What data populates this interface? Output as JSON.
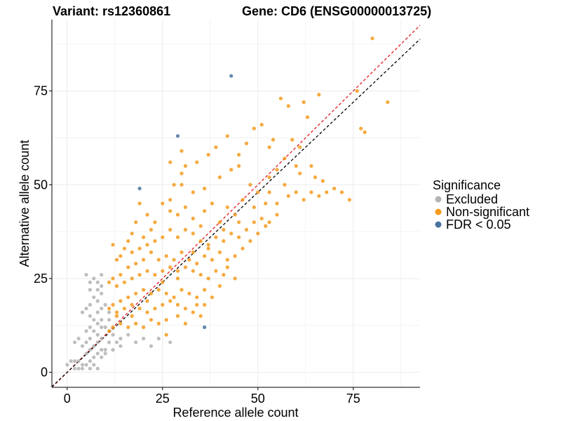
{
  "titles": {
    "left": "Variant: rs12360861",
    "right": "Gene: CD6 (ENSG00000013725)"
  },
  "chart_data": {
    "type": "scatter",
    "xlabel": "Reference allele count",
    "ylabel": "Alternative allele count",
    "xlim": [
      -4,
      92.5
    ],
    "ylim": [
      -4,
      94
    ],
    "xticks": [
      0,
      25,
      50,
      75
    ],
    "yticks": [
      0,
      25,
      50,
      75
    ],
    "grid": true,
    "reference_lines": [
      {
        "name": "identity",
        "color": "#e41a1c",
        "style": "dashed",
        "slope": 1.0,
        "intercept": 0
      },
      {
        "name": "expected",
        "color": "#000000",
        "style": "dashed",
        "slope": 0.96,
        "intercept": 0
      }
    ],
    "legend": {
      "title": "Significance",
      "placement": "right",
      "entries": [
        {
          "label": "Excluded",
          "color": "#b3b3b3"
        },
        {
          "label": "Non-significant",
          "color": "#f59a1c"
        },
        {
          "label": "FDR < 0.05",
          "color": "#4a73a0"
        }
      ]
    },
    "series": [
      {
        "name": "Excluded",
        "color": "#b3b3b3",
        "points": [
          [
            5,
            26
          ],
          [
            6,
            24
          ],
          [
            7,
            25
          ],
          [
            8,
            22
          ],
          [
            9,
            26
          ],
          [
            9,
            23
          ],
          [
            7,
            20
          ],
          [
            8,
            19
          ],
          [
            6,
            18
          ],
          [
            5,
            17
          ],
          [
            4,
            16
          ],
          [
            6,
            15
          ],
          [
            7,
            14
          ],
          [
            8,
            16
          ],
          [
            9,
            17
          ],
          [
            9,
            14
          ],
          [
            8,
            13
          ],
          [
            6,
            12
          ],
          [
            5,
            11
          ],
          [
            7,
            11
          ],
          [
            8,
            10
          ],
          [
            9,
            12
          ],
          [
            10,
            12
          ],
          [
            9,
            9
          ],
          [
            8,
            8
          ],
          [
            6,
            9
          ],
          [
            5,
            8
          ],
          [
            7,
            7
          ],
          [
            4,
            7
          ],
          [
            3,
            9
          ],
          [
            2,
            8
          ],
          [
            5,
            5
          ],
          [
            6,
            6
          ],
          [
            8,
            5
          ],
          [
            9,
            6
          ],
          [
            10,
            6
          ],
          [
            9,
            4
          ],
          [
            7,
            4
          ],
          [
            6,
            3
          ],
          [
            4,
            2
          ],
          [
            3,
            3
          ],
          [
            1,
            3
          ],
          [
            0,
            2
          ],
          [
            2,
            1
          ],
          [
            4,
            1
          ],
          [
            5,
            2
          ],
          [
            7,
            2
          ],
          [
            8,
            1
          ],
          [
            6,
            1
          ],
          [
            2,
            3
          ],
          [
            3,
            1
          ],
          [
            10,
            5
          ],
          [
            11,
            8
          ],
          [
            12,
            10
          ],
          [
            13,
            8
          ],
          [
            14,
            9
          ],
          [
            16,
            10
          ],
          [
            18,
            8
          ],
          [
            20,
            9
          ],
          [
            22,
            7
          ],
          [
            24,
            9
          ],
          [
            27,
            8
          ],
          [
            12,
            6
          ],
          [
            14,
            7
          ],
          [
            6,
            22
          ],
          [
            10,
            18
          ],
          [
            11,
            14
          ],
          [
            11,
            16
          ],
          [
            9,
            21
          ],
          [
            8,
            24
          ]
        ]
      },
      {
        "name": "Non-significant",
        "color": "#f59a1c",
        "points": [
          [
            80,
            89
          ],
          [
            77,
            65
          ],
          [
            84,
            72
          ],
          [
            78,
            64
          ],
          [
            76,
            75
          ],
          [
            62,
            72
          ],
          [
            66,
            74
          ],
          [
            63,
            68
          ],
          [
            58,
            71
          ],
          [
            56,
            73
          ],
          [
            59,
            62
          ],
          [
            54,
            62
          ],
          [
            51,
            66
          ],
          [
            53,
            60
          ],
          [
            49,
            65
          ],
          [
            47,
            61
          ],
          [
            42,
            63
          ],
          [
            45,
            58
          ],
          [
            39,
            60
          ],
          [
            37,
            58
          ],
          [
            34,
            56
          ],
          [
            30,
            59
          ],
          [
            30,
            53
          ],
          [
            30,
            50
          ],
          [
            31,
            55
          ],
          [
            27,
            56
          ],
          [
            28,
            50
          ],
          [
            27,
            46
          ],
          [
            33,
            48
          ],
          [
            36,
            49
          ],
          [
            40,
            52
          ],
          [
            43,
            54
          ],
          [
            45,
            55
          ],
          [
            48,
            50
          ],
          [
            50,
            48
          ],
          [
            53,
            52
          ],
          [
            55,
            54
          ],
          [
            57,
            57
          ],
          [
            60,
            55
          ],
          [
            61,
            60
          ],
          [
            64,
            55
          ],
          [
            65,
            52
          ],
          [
            67,
            51
          ],
          [
            68,
            48
          ],
          [
            70,
            49
          ],
          [
            72,
            48
          ],
          [
            74,
            46
          ],
          [
            52,
            45
          ],
          [
            55,
            45
          ],
          [
            58,
            47
          ],
          [
            60,
            48
          ],
          [
            62,
            46
          ],
          [
            64,
            48
          ],
          [
            66,
            47
          ],
          [
            46,
            46
          ],
          [
            44,
            42
          ],
          [
            42,
            44
          ],
          [
            40,
            40
          ],
          [
            38,
            45
          ],
          [
            36,
            43
          ],
          [
            35,
            39
          ],
          [
            33,
            41
          ],
          [
            31,
            44
          ],
          [
            29,
            42
          ],
          [
            27,
            43
          ],
          [
            25,
            45
          ],
          [
            23,
            40
          ],
          [
            22,
            38
          ],
          [
            21,
            42
          ],
          [
            20,
            36
          ],
          [
            19,
            45
          ],
          [
            18,
            40
          ],
          [
            17,
            37
          ],
          [
            16,
            35
          ],
          [
            15,
            33
          ],
          [
            14,
            31
          ],
          [
            13,
            30
          ],
          [
            12,
            34
          ],
          [
            17,
            32
          ],
          [
            19,
            33
          ],
          [
            21,
            34
          ],
          [
            23,
            35
          ],
          [
            25,
            36
          ],
          [
            27,
            38
          ],
          [
            29,
            36
          ],
          [
            31,
            38
          ],
          [
            33,
            37
          ],
          [
            35,
            35
          ],
          [
            37,
            34
          ],
          [
            39,
            36
          ],
          [
            41,
            38
          ],
          [
            43,
            37
          ],
          [
            45,
            36
          ],
          [
            47,
            38
          ],
          [
            49,
            40
          ],
          [
            51,
            41
          ],
          [
            53,
            40
          ],
          [
            46,
            33
          ],
          [
            44,
            31
          ],
          [
            42,
            30
          ],
          [
            40,
            32
          ],
          [
            38,
            30
          ],
          [
            36,
            31
          ],
          [
            34,
            29
          ],
          [
            32,
            30
          ],
          [
            30,
            32
          ],
          [
            28,
            30
          ],
          [
            26,
            31
          ],
          [
            24,
            30
          ],
          [
            22,
            32
          ],
          [
            20,
            30
          ],
          [
            18,
            29
          ],
          [
            16,
            28
          ],
          [
            14,
            26
          ],
          [
            12,
            25
          ],
          [
            11,
            24
          ],
          [
            13,
            23
          ],
          [
            15,
            24
          ],
          [
            17,
            25
          ],
          [
            19,
            26
          ],
          [
            21,
            27
          ],
          [
            23,
            26
          ],
          [
            25,
            27
          ],
          [
            27,
            28
          ],
          [
            29,
            27
          ],
          [
            31,
            28
          ],
          [
            33,
            27
          ],
          [
            35,
            26
          ],
          [
            37,
            25
          ],
          [
            39,
            27
          ],
          [
            41,
            26
          ],
          [
            36,
            22
          ],
          [
            34,
            20
          ],
          [
            32,
            21
          ],
          [
            30,
            22
          ],
          [
            28,
            20
          ],
          [
            26,
            21
          ],
          [
            24,
            22
          ],
          [
            22,
            21
          ],
          [
            20,
            22
          ],
          [
            18,
            21
          ],
          [
            16,
            20
          ],
          [
            14,
            19
          ],
          [
            12,
            18
          ],
          [
            11,
            17
          ],
          [
            13,
            16
          ],
          [
            15,
            17
          ],
          [
            17,
            18
          ],
          [
            19,
            17
          ],
          [
            21,
            16
          ],
          [
            23,
            17
          ],
          [
            25,
            18
          ],
          [
            27,
            19
          ],
          [
            29,
            18
          ],
          [
            31,
            17
          ],
          [
            33,
            16
          ],
          [
            35,
            15
          ],
          [
            36,
            18
          ],
          [
            26,
            14
          ],
          [
            24,
            13
          ],
          [
            22,
            14
          ],
          [
            20,
            12
          ],
          [
            18,
            13
          ],
          [
            16,
            12
          ],
          [
            14,
            13
          ],
          [
            12,
            12
          ],
          [
            11,
            11
          ],
          [
            13,
            15
          ],
          [
            17,
            15
          ],
          [
            21,
            19
          ],
          [
            25,
            24
          ],
          [
            29,
            25
          ],
          [
            33,
            32
          ],
          [
            37,
            33
          ],
          [
            41,
            35
          ],
          [
            45,
            40
          ],
          [
            49,
            44
          ],
          [
            53,
            48
          ],
          [
            57,
            50
          ],
          [
            61,
            53
          ],
          [
            34,
            18
          ],
          [
            38,
            20
          ],
          [
            40,
            23
          ],
          [
            42,
            28
          ],
          [
            44,
            25
          ],
          [
            48,
            35
          ],
          [
            50,
            37
          ],
          [
            52,
            39
          ],
          [
            55,
            42
          ],
          [
            26,
            10
          ],
          [
            29,
            15
          ],
          [
            31,
            13
          ]
        ]
      },
      {
        "name": "FDR < 0.05",
        "color": "#4a73a0",
        "points": [
          [
            43,
            79
          ],
          [
            29,
            63
          ],
          [
            19,
            49
          ],
          [
            36,
            12
          ]
        ]
      }
    ]
  }
}
